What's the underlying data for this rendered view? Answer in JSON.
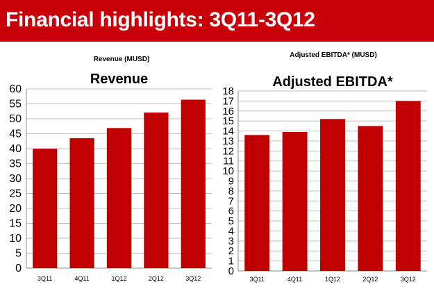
{
  "header": {
    "title": "Financial highlights: 3Q11-3Q12"
  },
  "colors": {
    "header": "#c8000a",
    "bar": "#c00000",
    "grid": "#bfbfbf"
  },
  "chart_data": [
    {
      "type": "bar",
      "subtitle": "Revenue (MUSD)",
      "title": "Revenue",
      "categories": [
        "3Q11",
        "4Q11",
        "1Q12",
        "2Q12",
        "3Q12"
      ],
      "values": [
        40.0,
        43.5,
        46.9,
        52.1,
        56.4
      ],
      "ylim": [
        0,
        60
      ],
      "ystep": 5,
      "yticks": [
        "0",
        "5",
        "10",
        "15",
        "20",
        "25",
        "30",
        "35",
        "40",
        "45",
        "50",
        "55",
        "60"
      ],
      "grid": true
    },
    {
      "type": "bar",
      "subtitle": "Adjusted EBITDA* (MUSD)",
      "title": "Adjusted EBITDA*",
      "categories": [
        "3Q11",
        "4Q11",
        "1Q12",
        "2Q12",
        "3Q12"
      ],
      "values": [
        13.6,
        13.9,
        15.2,
        14.5,
        17.0
      ],
      "ylim": [
        0,
        18
      ],
      "ystep": 1,
      "yticks": [
        "0",
        "1",
        "2",
        "3",
        "4",
        "5",
        "6",
        "7",
        "8",
        "9",
        "10",
        "11",
        "12",
        "13",
        "14",
        "15",
        "16",
        "17",
        "18"
      ],
      "grid": true
    }
  ]
}
